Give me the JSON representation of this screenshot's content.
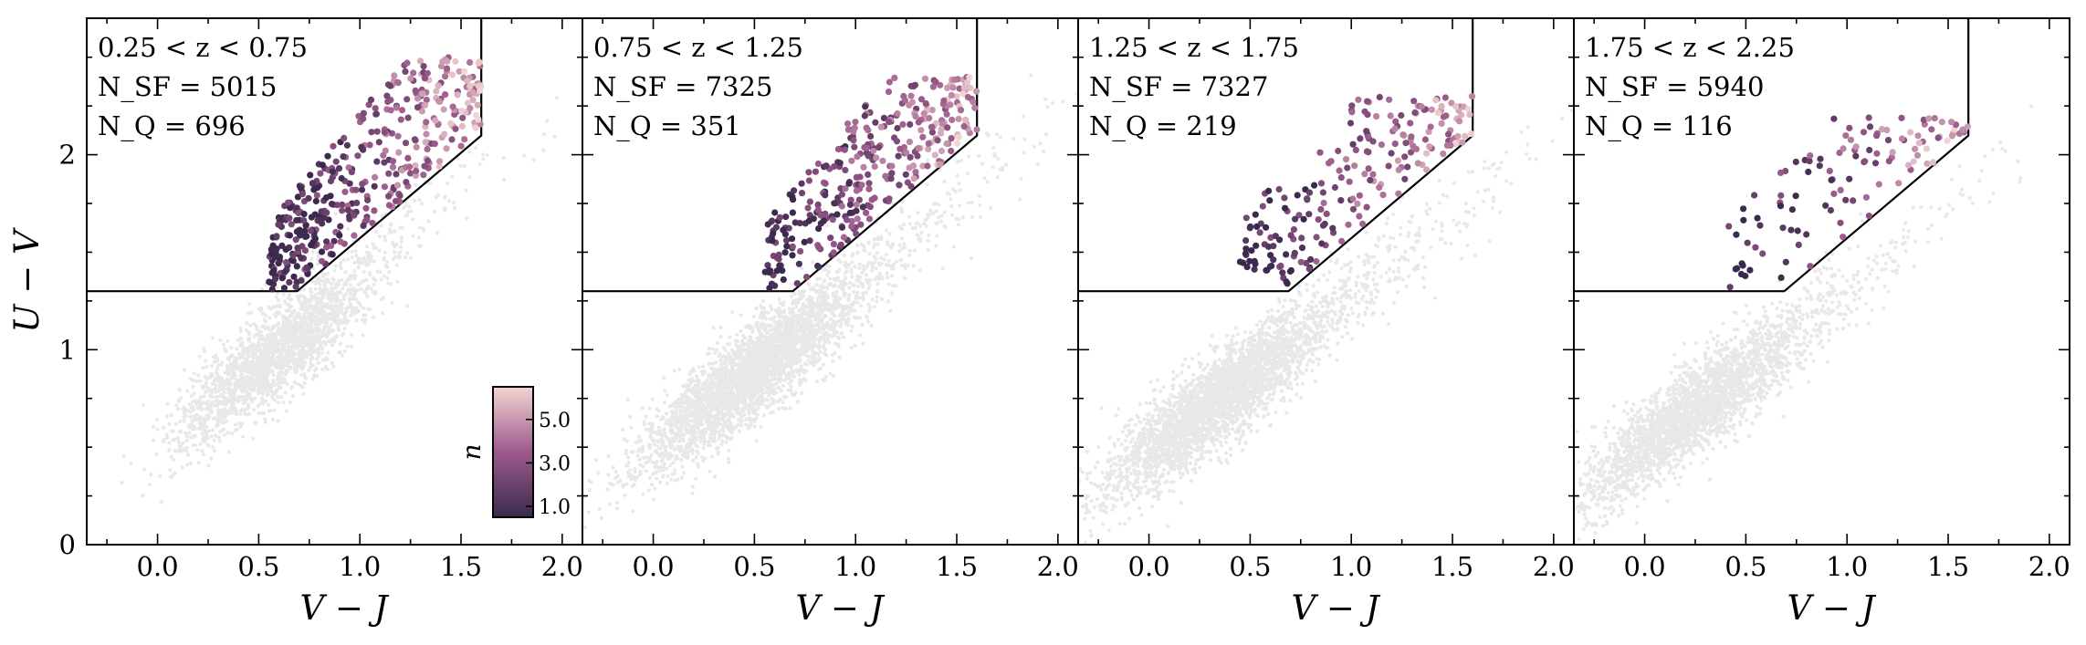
{
  "chart_data": [
    {
      "type": "scatter",
      "panel_label": "0.25 < z < 0.75",
      "annotations": [
        "0.25 < z < 0.75",
        "N_SF = 5015",
        "N_Q = 696"
      ],
      "n_sf": 5015,
      "n_q": 696,
      "xlabel": "V − J",
      "ylabel": "U − V",
      "xlim": [
        -0.35,
        2.1
      ],
      "ylim": [
        0,
        2.7
      ],
      "x_ticks": [
        "0.0",
        "0.5",
        "1.0",
        "1.5",
        "2.0"
      ],
      "y_ticks": [
        "0",
        "1",
        "2"
      ],
      "star_forming_cloud": {
        "center": [
          0.55,
          0.95
        ],
        "slope": 0.95,
        "spread_major": 0.3,
        "spread_minor": 0.09
      },
      "quiescent_region": {
        "x_range": [
          0.55,
          1.6
        ],
        "y_range": [
          1.3,
          2.5
        ]
      }
    },
    {
      "type": "scatter",
      "panel_label": "0.75 < z < 1.25",
      "annotations": [
        "0.75 < z < 1.25",
        "N_SF = 7325",
        "N_Q = 351"
      ],
      "n_sf": 7325,
      "n_q": 351,
      "xlabel": "V − J",
      "xlim": [
        -0.35,
        2.1
      ],
      "ylim": [
        0,
        2.7
      ],
      "x_ticks": [
        "0.0",
        "0.5",
        "1.0",
        "1.5",
        "2.0"
      ],
      "star_forming_cloud": {
        "center": [
          0.45,
          0.85
        ],
        "slope": 0.9,
        "spread_major": 0.33,
        "spread_minor": 0.09
      },
      "quiescent_region": {
        "x_range": [
          0.55,
          1.6
        ],
        "y_range": [
          1.3,
          2.4
        ]
      }
    },
    {
      "type": "scatter",
      "panel_label": "1.25 < z < 1.75",
      "annotations": [
        "1.25 < z < 1.75",
        "N_SF = 7327",
        "N_Q = 219"
      ],
      "n_sf": 7327,
      "n_q": 219,
      "xlabel": "V − J",
      "xlim": [
        -0.35,
        2.1
      ],
      "ylim": [
        0,
        2.7
      ],
      "x_ticks": [
        "0.0",
        "0.5",
        "1.0",
        "1.5",
        "2.0"
      ],
      "star_forming_cloud": {
        "center": [
          0.3,
          0.7
        ],
        "slope": 0.85,
        "spread_major": 0.35,
        "spread_minor": 0.09
      },
      "quiescent_region": {
        "x_range": [
          0.45,
          1.6
        ],
        "y_range": [
          1.3,
          2.3
        ]
      }
    },
    {
      "type": "scatter",
      "panel_label": "1.75 < z < 2.25",
      "annotations": [
        "1.75 < z < 2.25",
        "N_SF = 5940",
        "N_Q = 116"
      ],
      "n_sf": 5940,
      "n_q": 116,
      "xlabel": "V − J",
      "xlim": [
        -0.35,
        2.1
      ],
      "ylim": [
        0,
        2.7
      ],
      "x_ticks": [
        "0.0",
        "0.5",
        "1.0",
        "1.5",
        "2.0"
      ],
      "star_forming_cloud": {
        "center": [
          0.2,
          0.65
        ],
        "slope": 0.85,
        "spread_major": 0.35,
        "spread_minor": 0.09
      },
      "quiescent_region": {
        "x_range": [
          0.4,
          1.6
        ],
        "y_range": [
          1.3,
          2.2
        ]
      }
    }
  ],
  "quiescent_boundary": {
    "lower_y": 1.3,
    "corner_x": 0.69,
    "slope": 0.88,
    "intercept": 0.69,
    "max_x": 1.6
  },
  "colorbar": {
    "label": "n",
    "ticks": [
      "1.0",
      "3.0",
      "5.0"
    ],
    "tick_values": [
      1.0,
      3.0,
      5.0
    ],
    "range": [
      0.5,
      6.5
    ],
    "color_low": "#3b2a4d",
    "color_mid": "#9c5a8b",
    "color_high": "#f2d4d2"
  },
  "colors": {
    "background_points": "#000000",
    "frame": "#000000"
  }
}
